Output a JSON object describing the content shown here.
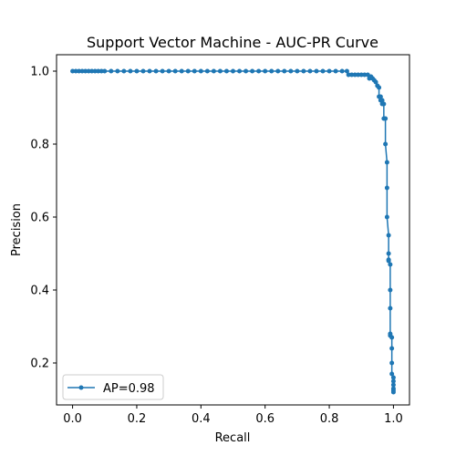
{
  "chart_data": {
    "type": "line",
    "title": "Support Vector Machine - AUC-PR Curve",
    "xlabel": "Recall",
    "ylabel": "Precision",
    "xlim": [
      -0.05,
      1.05
    ],
    "ylim": [
      0.085,
      1.045
    ],
    "x_ticks": [
      0.0,
      0.2,
      0.4,
      0.6,
      0.8,
      1.0
    ],
    "x_tick_labels": [
      "0.0",
      "0.2",
      "0.4",
      "0.6",
      "0.8",
      "1.0"
    ],
    "y_ticks": [
      0.2,
      0.4,
      0.6,
      0.8,
      1.0
    ],
    "y_tick_labels": [
      "0.2",
      "0.4",
      "0.6",
      "0.8",
      "1.0"
    ],
    "grid": false,
    "legend": {
      "position": "lower-left"
    },
    "series": [
      {
        "name": "AP=0.98",
        "color": "#1f77b4",
        "marker": "circle",
        "recall": [
          0.0,
          0.01,
          0.02,
          0.03,
          0.04,
          0.05,
          0.06,
          0.07,
          0.08,
          0.09,
          0.1,
          0.12,
          0.14,
          0.16,
          0.18,
          0.2,
          0.22,
          0.24,
          0.26,
          0.28,
          0.3,
          0.32,
          0.34,
          0.36,
          0.38,
          0.4,
          0.42,
          0.44,
          0.46,
          0.48,
          0.5,
          0.52,
          0.54,
          0.56,
          0.58,
          0.6,
          0.62,
          0.64,
          0.66,
          0.68,
          0.7,
          0.72,
          0.74,
          0.76,
          0.78,
          0.8,
          0.82,
          0.84,
          0.855,
          0.86,
          0.87,
          0.88,
          0.89,
          0.9,
          0.91,
          0.92,
          0.925,
          0.93,
          0.935,
          0.94,
          0.945,
          0.95,
          0.955,
          0.955,
          0.96,
          0.96,
          0.965,
          0.965,
          0.97,
          0.97,
          0.975,
          0.975,
          0.98,
          0.98,
          0.98,
          0.985,
          0.985,
          0.985,
          0.985,
          0.99,
          0.99,
          0.99,
          0.99,
          0.99,
          0.995,
          0.995,
          0.995,
          0.995,
          1.0,
          1.0,
          1.0,
          1.0,
          1.0,
          1.0
        ],
        "precision": [
          1.0,
          1.0,
          1.0,
          1.0,
          1.0,
          1.0,
          1.0,
          1.0,
          1.0,
          1.0,
          1.0,
          1.0,
          1.0,
          1.0,
          1.0,
          1.0,
          1.0,
          1.0,
          1.0,
          1.0,
          1.0,
          1.0,
          1.0,
          1.0,
          1.0,
          1.0,
          1.0,
          1.0,
          1.0,
          1.0,
          1.0,
          1.0,
          1.0,
          1.0,
          1.0,
          1.0,
          1.0,
          1.0,
          1.0,
          1.0,
          1.0,
          1.0,
          1.0,
          1.0,
          1.0,
          1.0,
          1.0,
          1.0,
          1.0,
          0.99,
          0.99,
          0.99,
          0.99,
          0.99,
          0.99,
          0.99,
          0.98,
          0.985,
          0.98,
          0.975,
          0.97,
          0.96,
          0.955,
          0.93,
          0.93,
          0.92,
          0.92,
          0.91,
          0.91,
          0.87,
          0.87,
          0.8,
          0.75,
          0.68,
          0.6,
          0.55,
          0.5,
          0.483,
          0.48,
          0.47,
          0.4,
          0.35,
          0.28,
          0.275,
          0.27,
          0.24,
          0.2,
          0.17,
          0.16,
          0.15,
          0.14,
          0.13,
          0.125,
          0.12
        ]
      }
    ]
  }
}
